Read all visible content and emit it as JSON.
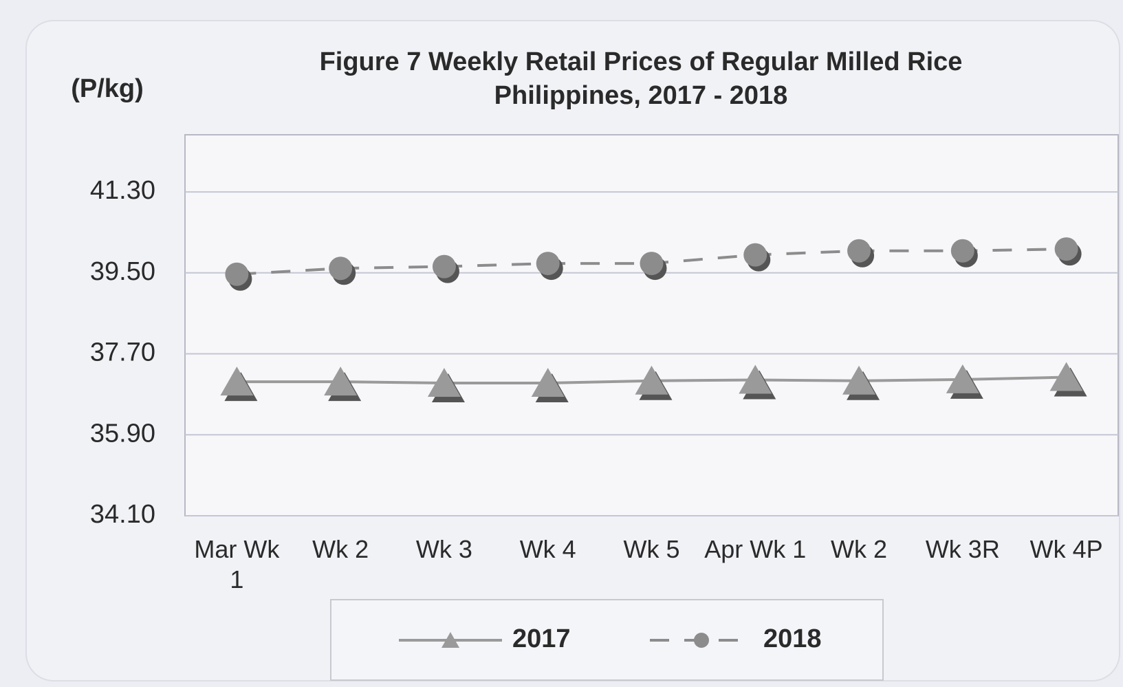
{
  "chart_data": {
    "type": "line",
    "title": "Figure 7  Weekly Retail Prices of Regular Milled Rice",
    "subtitle": "Philippines, 2017 - 2018",
    "ylabel": "(P/kg)",
    "categories": [
      "Mar Wk 1",
      "Wk 2",
      "Wk 3",
      "Wk 4",
      "Wk 5",
      "Apr Wk 1",
      "Wk 2",
      "Wk 3R",
      "Wk 4P"
    ],
    "series": [
      {
        "name": "2017",
        "color": "#9a9a9a",
        "marker": "triangle",
        "dash": false,
        "values": [
          37.08,
          37.08,
          37.05,
          37.05,
          37.1,
          37.12,
          37.1,
          37.13,
          37.18
        ]
      },
      {
        "name": "2018",
        "color": "#8c8c8c",
        "marker": "circle",
        "dash": true,
        "values": [
          39.47,
          39.6,
          39.64,
          39.71,
          39.71,
          39.9,
          39.99,
          39.99,
          40.03
        ]
      }
    ],
    "ylim": [
      34.1,
      42.57
    ],
    "yticks": [
      {
        "value": 34.1,
        "label": "34.10"
      },
      {
        "value": 35.9,
        "label": "35.90"
      },
      {
        "value": 37.7,
        "label": "37.70"
      },
      {
        "value": 39.5,
        "label": "39.50"
      },
      {
        "value": 41.3,
        "label": "41.30"
      }
    ],
    "grid": true,
    "legend": "bottom"
  }
}
